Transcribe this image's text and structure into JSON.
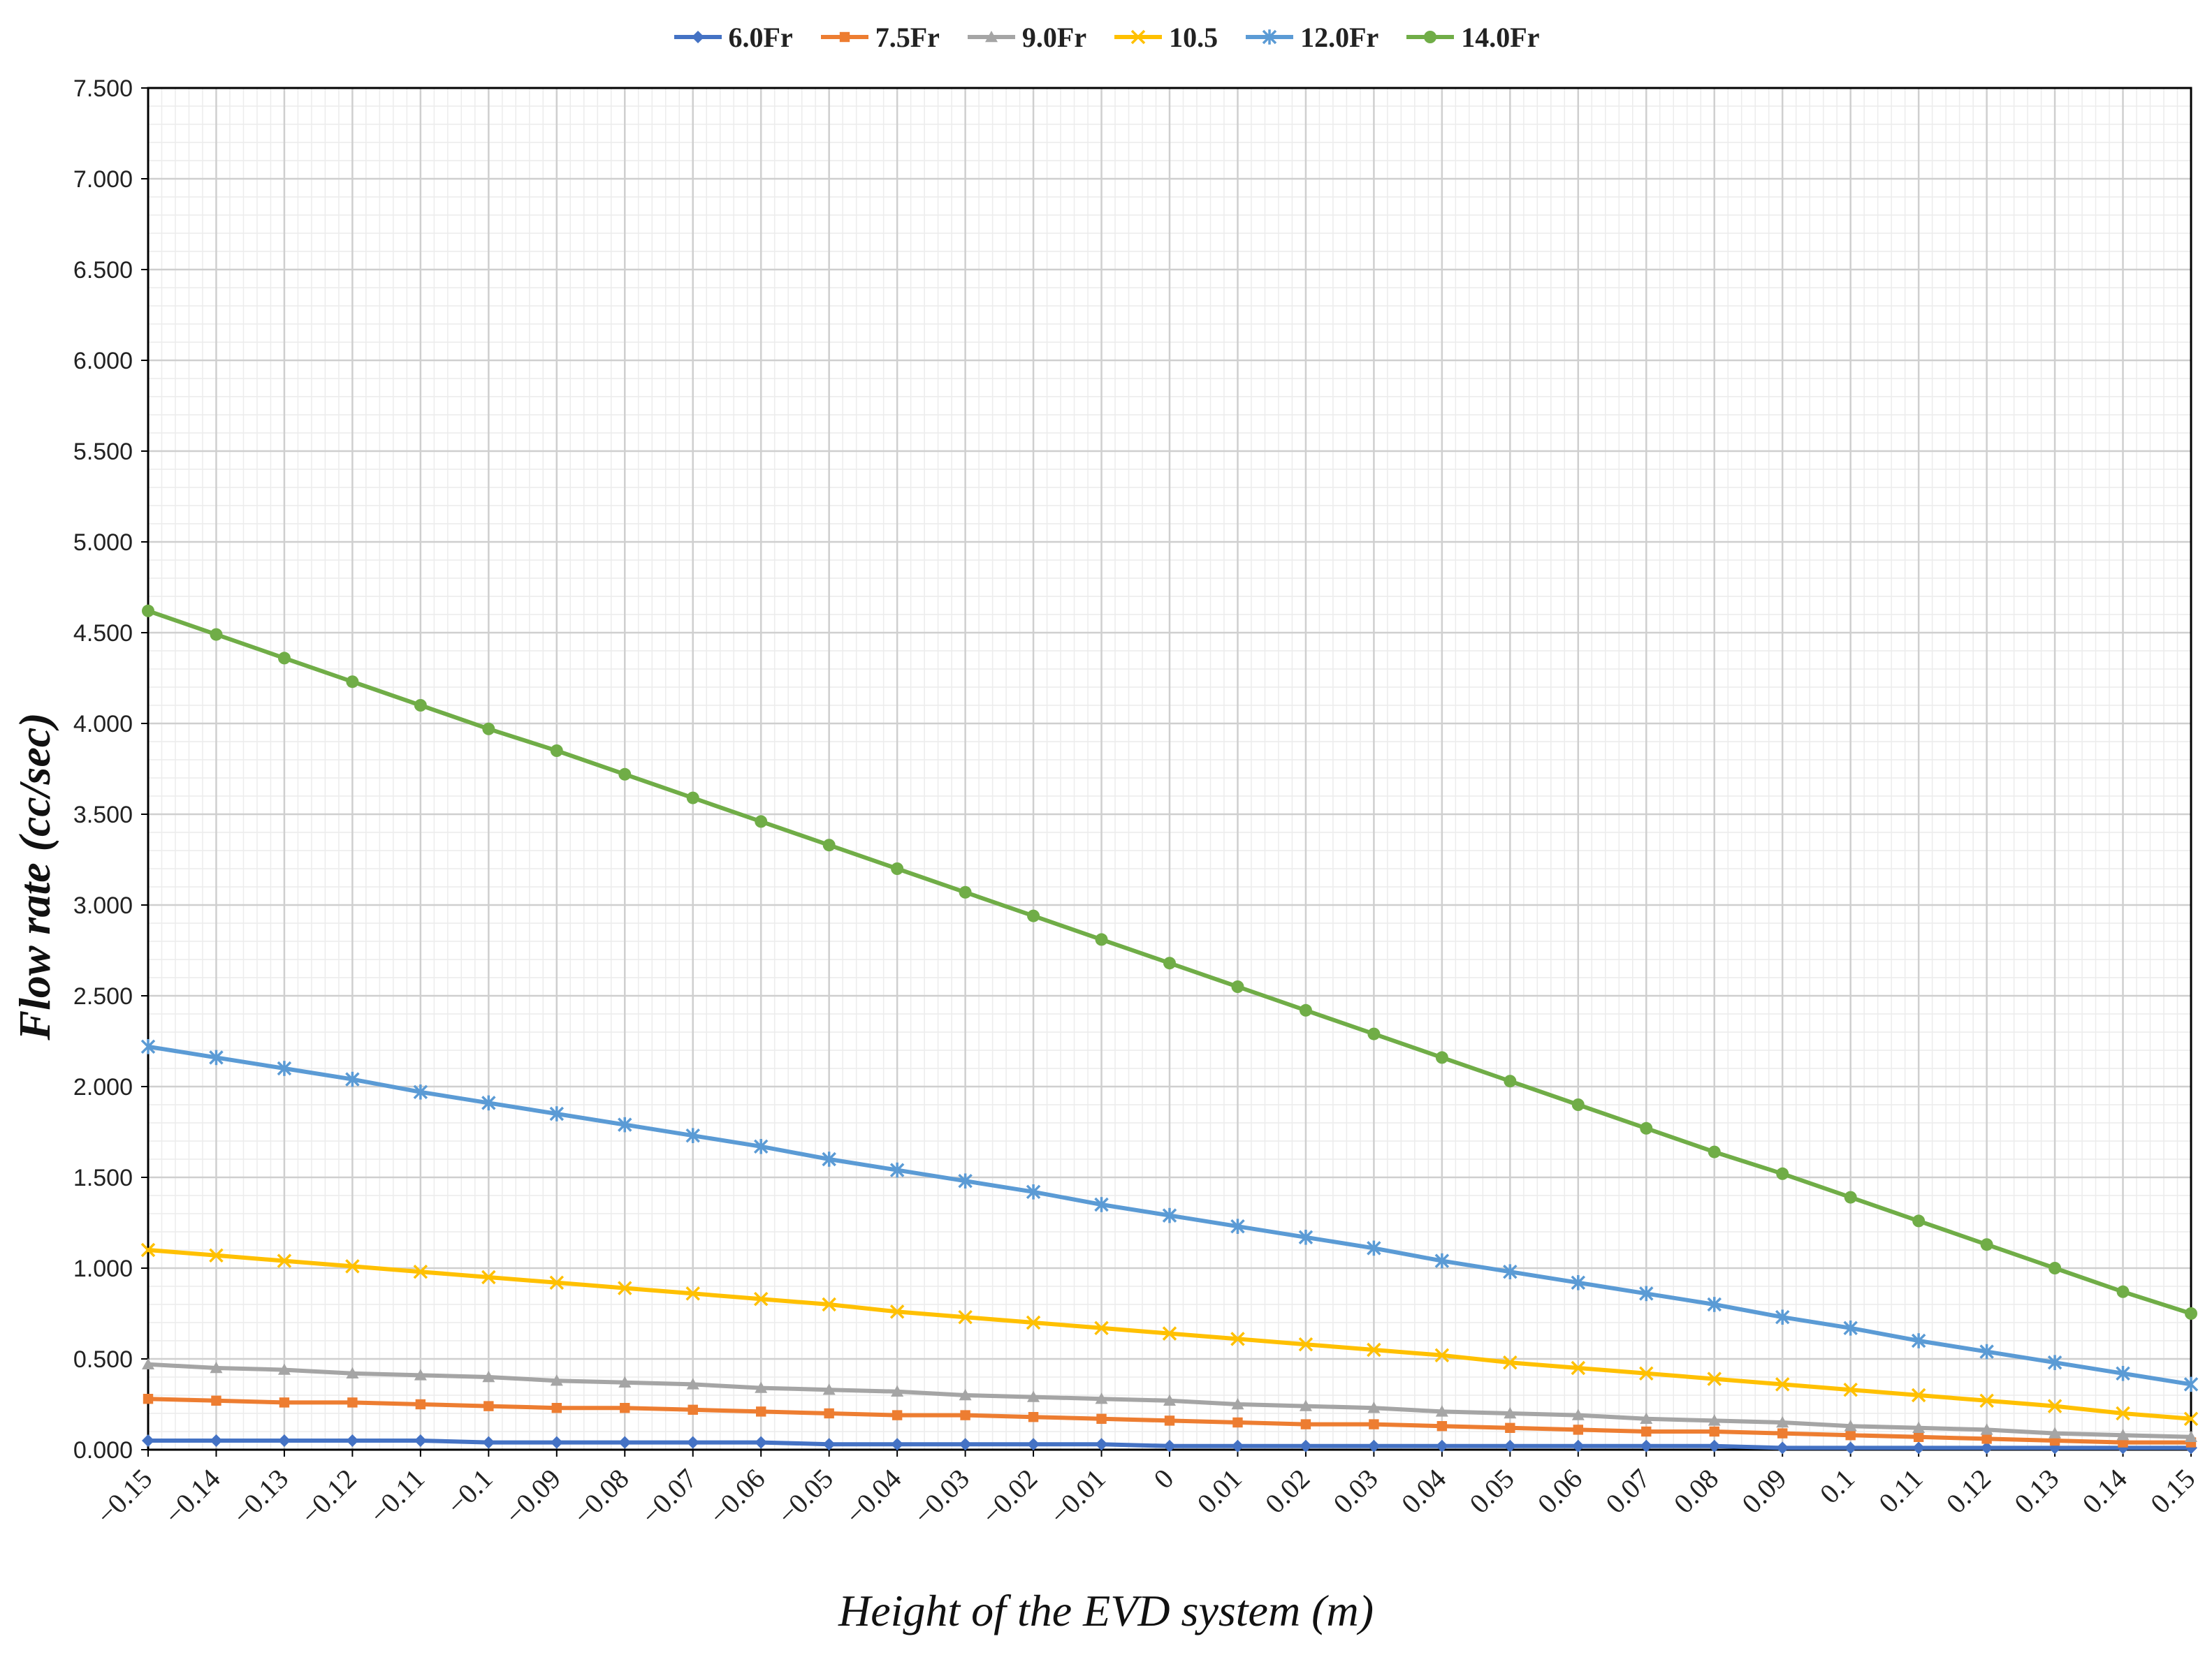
{
  "chart_data": {
    "type": "line",
    "title": "",
    "xlabel": "Height of the EVD system (m)",
    "ylabel": "Flow rate (cc/sec)",
    "ylim": [
      0,
      7.5
    ],
    "yticks": [
      "0.000",
      "0.500",
      "1.000",
      "1.500",
      "2.000",
      "2.500",
      "3.000",
      "3.500",
      "4.000",
      "4.500",
      "5.000",
      "5.500",
      "6.000",
      "6.500",
      "7.000",
      "7.500"
    ],
    "x": [
      "-0.15",
      "-0.14",
      "-0.13",
      "-0.12",
      "-0.11",
      "-0.1",
      "-0.09",
      "-0.08",
      "-0.07",
      "-0.06",
      "-0.05",
      "-0.04",
      "-0.03",
      "-0.02",
      "-0.01",
      "0",
      "0.01",
      "0.02",
      "0.03",
      "0.04",
      "0.05",
      "0.06",
      "0.07",
      "0.08",
      "0.09",
      "0.1",
      "0.11",
      "0.12",
      "0.13",
      "0.14",
      "0.15"
    ],
    "grid": true,
    "legend_position": "top",
    "series": [
      {
        "name": "6.0Fr",
        "color": "#4472C4",
        "marker": "diamond",
        "values": [
          0.05,
          0.05,
          0.05,
          0.05,
          0.05,
          0.04,
          0.04,
          0.04,
          0.04,
          0.04,
          0.03,
          0.03,
          0.03,
          0.03,
          0.03,
          0.02,
          0.02,
          0.02,
          0.02,
          0.02,
          0.02,
          0.02,
          0.02,
          0.02,
          0.01,
          0.01,
          0.01,
          0.01,
          0.01,
          0.01,
          0.01
        ]
      },
      {
        "name": "7.5Fr",
        "color": "#ED7D31",
        "marker": "square",
        "values": [
          0.28,
          0.27,
          0.26,
          0.26,
          0.25,
          0.24,
          0.23,
          0.23,
          0.22,
          0.21,
          0.2,
          0.19,
          0.19,
          0.18,
          0.17,
          0.16,
          0.15,
          0.14,
          0.14,
          0.13,
          0.12,
          0.11,
          0.1,
          0.1,
          0.09,
          0.08,
          0.07,
          0.06,
          0.05,
          0.04,
          0.04
        ]
      },
      {
        "name": "9.0Fr",
        "color": "#A5A5A5",
        "marker": "triangle",
        "values": [
          0.47,
          0.45,
          0.44,
          0.42,
          0.41,
          0.4,
          0.38,
          0.37,
          0.36,
          0.34,
          0.33,
          0.32,
          0.3,
          0.29,
          0.28,
          0.27,
          0.25,
          0.24,
          0.23,
          0.21,
          0.2,
          0.19,
          0.17,
          0.16,
          0.15,
          0.13,
          0.12,
          0.11,
          0.09,
          0.08,
          0.07
        ]
      },
      {
        "name": "10.5",
        "color": "#FFC000",
        "marker": "x",
        "values": [
          1.1,
          1.07,
          1.04,
          1.01,
          0.98,
          0.95,
          0.92,
          0.89,
          0.86,
          0.83,
          0.8,
          0.76,
          0.73,
          0.7,
          0.67,
          0.64,
          0.61,
          0.58,
          0.55,
          0.52,
          0.48,
          0.45,
          0.42,
          0.39,
          0.36,
          0.33,
          0.3,
          0.27,
          0.24,
          0.2,
          0.17
        ]
      },
      {
        "name": "12.0Fr",
        "color": "#5B9BD5",
        "marker": "star",
        "values": [
          2.22,
          2.16,
          2.1,
          2.04,
          1.97,
          1.91,
          1.85,
          1.79,
          1.73,
          1.67,
          1.6,
          1.54,
          1.48,
          1.42,
          1.35,
          1.29,
          1.23,
          1.17,
          1.11,
          1.04,
          0.98,
          0.92,
          0.86,
          0.8,
          0.73,
          0.67,
          0.6,
          0.54,
          0.48,
          0.42,
          0.36
        ]
      },
      {
        "name": "14.0Fr",
        "color": "#70AD47",
        "marker": "circle",
        "values": [
          4.62,
          4.49,
          4.36,
          4.23,
          4.1,
          3.97,
          3.85,
          3.72,
          3.59,
          3.46,
          3.33,
          3.2,
          3.07,
          2.94,
          2.81,
          2.68,
          2.55,
          2.42,
          2.29,
          2.16,
          2.03,
          1.9,
          1.77,
          1.64,
          1.52,
          1.39,
          1.26,
          1.13,
          1.0,
          0.87,
          0.75
        ]
      }
    ]
  }
}
